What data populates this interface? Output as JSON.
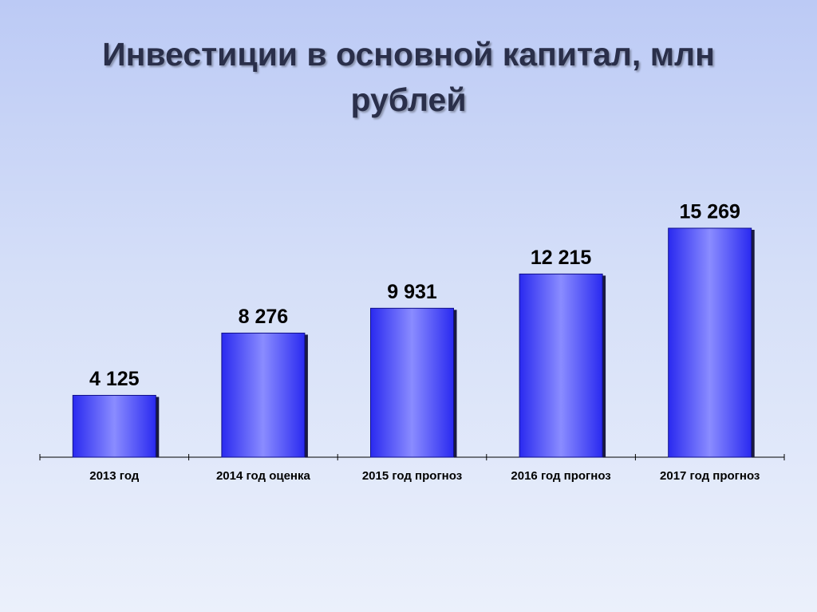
{
  "chart_data": {
    "type": "bar",
    "title": "Инвестиции в основной капитал, млн рублей",
    "categories": [
      "2013 год",
      "2014 год оценка",
      "2015 год прогноз",
      "2016 год прогноз",
      "2017 год прогноз"
    ],
    "values": [
      4125,
      8276,
      9931,
      12215,
      15269
    ],
    "value_labels": [
      "4 125",
      "8 276",
      "9 931",
      "12 215",
      "15 269"
    ],
    "color": "#2a2af0"
  }
}
